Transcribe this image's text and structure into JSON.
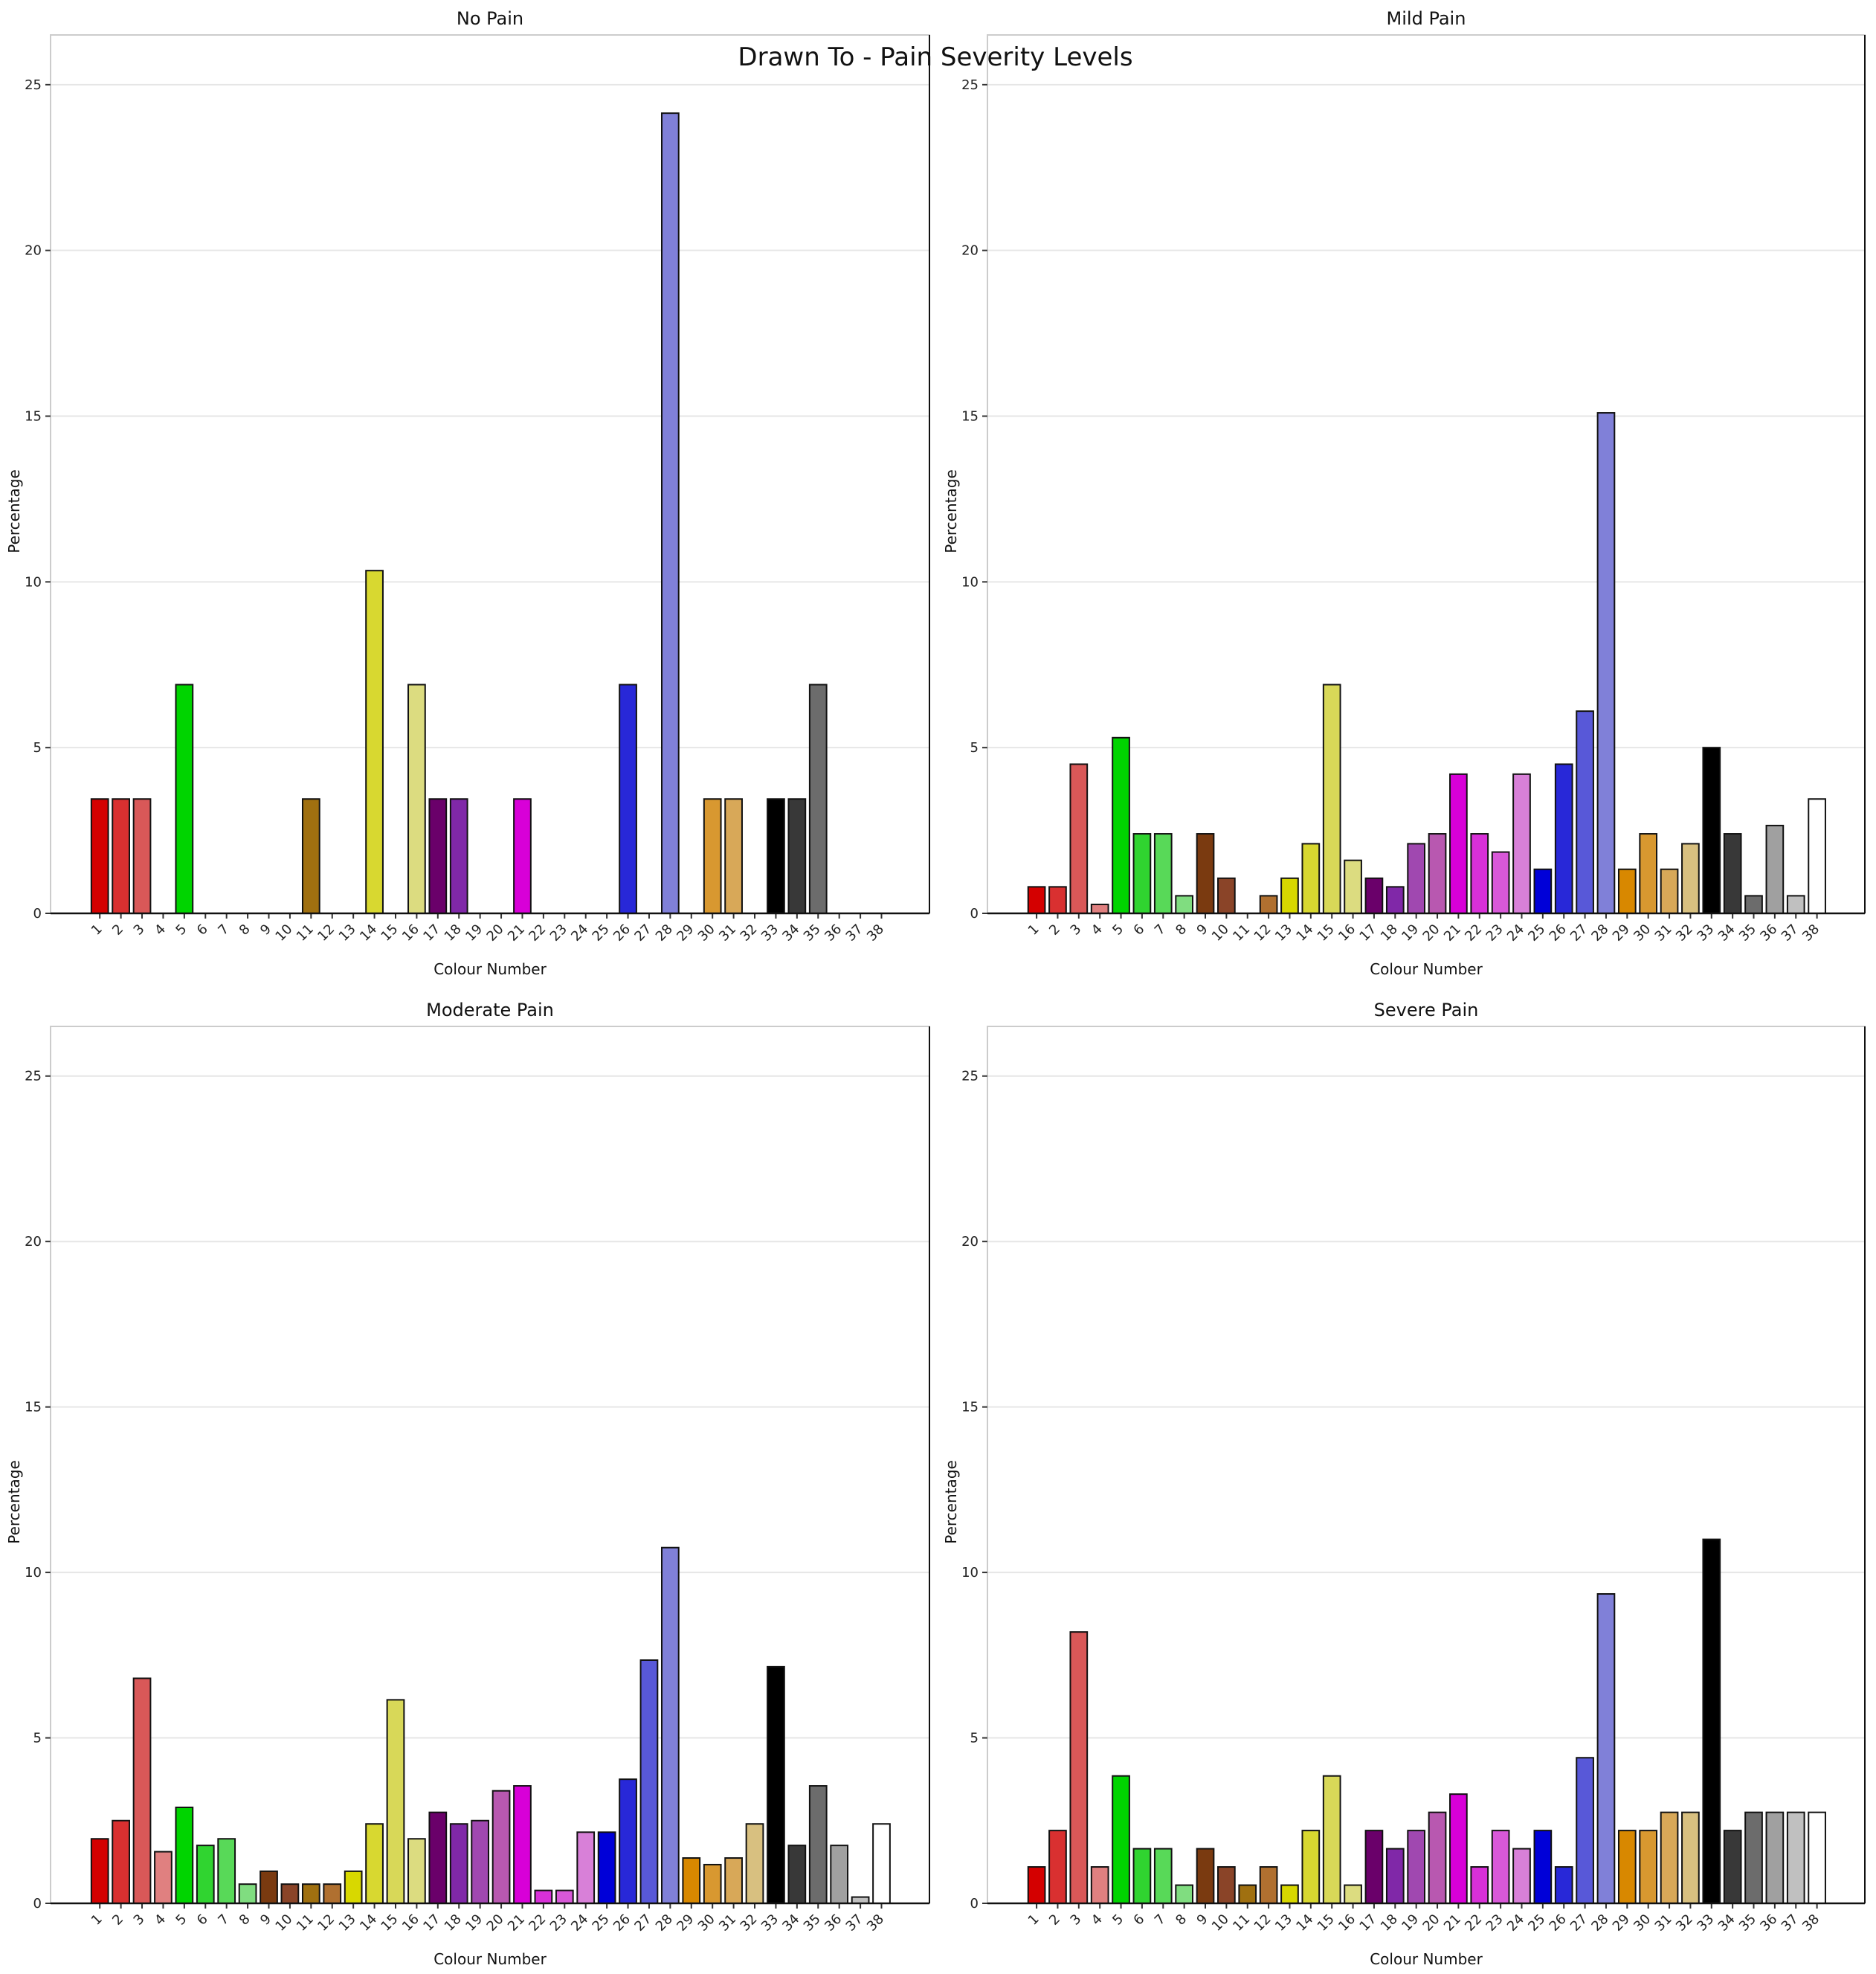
{
  "suptitle": "Drawn To - Pain Severity Levels",
  "colors": [
    "#d40000",
    "#d93030",
    "#d95858",
    "#e08080",
    "#00d400",
    "#30d430",
    "#58d958",
    "#80dd80",
    "#7a3a10",
    "#8a4428",
    "#a07010",
    "#b07030",
    "#d8d800",
    "#d8d830",
    "#d8d858",
    "#dcdc80",
    "#6a006a",
    "#8028a8",
    "#a048b0",
    "#b858b0",
    "#d800d8",
    "#d830d8",
    "#d858d8",
    "#d880d8",
    "#0000d8",
    "#2828d8",
    "#5858d8",
    "#8080d8",
    "#d88800",
    "#d89830",
    "#d8a858",
    "#d8c080",
    "#000000",
    "#383838",
    "#6c6c6c",
    "#a0a0a0",
    "#c0c0c0",
    "#ffffff"
  ],
  "chart_data": [
    {
      "type": "bar",
      "title": "No Pain",
      "xlabel": "Colour Number",
      "ylabel": "Percentage",
      "ylim": [
        0,
        26.5
      ],
      "yticks": [
        0,
        5,
        10,
        15,
        20,
        25
      ],
      "grid": true,
      "categories": [
        "1",
        "2",
        "3",
        "4",
        "5",
        "6",
        "7",
        "8",
        "9",
        "10",
        "11",
        "12",
        "13",
        "14",
        "15",
        "16",
        "17",
        "18",
        "19",
        "20",
        "21",
        "22",
        "23",
        "24",
        "25",
        "26",
        "27",
        "28",
        "29",
        "30",
        "31",
        "32",
        "33",
        "34",
        "35",
        "36",
        "37",
        "38"
      ],
      "values": [
        3.45,
        3.45,
        3.45,
        0,
        6.9,
        0,
        0,
        0,
        0,
        0,
        3.45,
        0,
        0,
        10.34,
        0,
        6.9,
        3.45,
        3.45,
        0,
        0,
        3.45,
        0,
        0,
        0,
        0,
        6.9,
        0,
        24.14,
        0,
        3.45,
        3.45,
        0,
        3.45,
        3.45,
        6.9,
        0,
        0,
        0
      ]
    },
    {
      "type": "bar",
      "title": "Mild Pain",
      "xlabel": "Colour Number",
      "ylabel": "Percentage",
      "ylim": [
        0,
        26.5
      ],
      "yticks": [
        0,
        5,
        10,
        15,
        20,
        25
      ],
      "grid": true,
      "categories": [
        "1",
        "2",
        "3",
        "4",
        "5",
        "6",
        "7",
        "8",
        "9",
        "10",
        "11",
        "12",
        "13",
        "14",
        "15",
        "16",
        "17",
        "18",
        "19",
        "20",
        "21",
        "22",
        "23",
        "24",
        "25",
        "26",
        "27",
        "28",
        "29",
        "30",
        "31",
        "32",
        "33",
        "34",
        "35",
        "36",
        "37",
        "38"
      ],
      "values": [
        0.8,
        0.8,
        4.5,
        0.27,
        5.3,
        2.4,
        2.4,
        0.53,
        2.4,
        1.06,
        0,
        0.53,
        1.06,
        2.1,
        6.9,
        1.6,
        1.06,
        0.8,
        2.1,
        2.4,
        4.2,
        2.4,
        1.85,
        4.2,
        1.33,
        4.5,
        6.1,
        15.1,
        1.33,
        2.4,
        1.33,
        2.1,
        5.0,
        2.4,
        0.53,
        2.65,
        0.53,
        3.45
      ]
    },
    {
      "type": "bar",
      "title": "Moderate Pain",
      "xlabel": "Colour Number",
      "ylabel": "Percentage",
      "ylim": [
        0,
        26.5
      ],
      "yticks": [
        0,
        5,
        10,
        15,
        20,
        25
      ],
      "grid": true,
      "categories": [
        "1",
        "2",
        "3",
        "4",
        "5",
        "6",
        "7",
        "8",
        "9",
        "10",
        "11",
        "12",
        "13",
        "14",
        "15",
        "16",
        "17",
        "18",
        "19",
        "20",
        "21",
        "22",
        "23",
        "24",
        "25",
        "26",
        "27",
        "28",
        "29",
        "30",
        "31",
        "32",
        "33",
        "34",
        "35",
        "36",
        "37",
        "38"
      ],
      "values": [
        1.95,
        2.5,
        6.8,
        1.56,
        2.9,
        1.75,
        1.95,
        0.58,
        0.97,
        0.58,
        0.58,
        0.58,
        0.97,
        2.4,
        6.15,
        1.95,
        2.75,
        2.4,
        2.5,
        3.4,
        3.55,
        0.39,
        0.39,
        2.15,
        2.15,
        3.75,
        7.35,
        10.75,
        1.37,
        1.17,
        1.37,
        2.4,
        7.15,
        1.75,
        3.55,
        1.75,
        0.19,
        2.4
      ]
    },
    {
      "type": "bar",
      "title": "Severe Pain",
      "xlabel": "Colour Number",
      "ylabel": "Percentage",
      "ylim": [
        0,
        26.5
      ],
      "yticks": [
        0,
        5,
        10,
        15,
        20,
        25
      ],
      "grid": true,
      "categories": [
        "1",
        "2",
        "3",
        "4",
        "5",
        "6",
        "7",
        "8",
        "9",
        "10",
        "11",
        "12",
        "13",
        "14",
        "15",
        "16",
        "17",
        "18",
        "19",
        "20",
        "21",
        "22",
        "23",
        "24",
        "25",
        "26",
        "27",
        "28",
        "29",
        "30",
        "31",
        "32",
        "33",
        "34",
        "35",
        "36",
        "37",
        "38"
      ],
      "values": [
        1.1,
        2.2,
        8.2,
        1.1,
        3.85,
        1.65,
        1.65,
        0.55,
        1.65,
        1.1,
        0.55,
        1.1,
        0.55,
        2.2,
        3.85,
        0.55,
        2.2,
        1.65,
        2.2,
        2.75,
        3.3,
        1.1,
        2.2,
        1.65,
        2.2,
        1.1,
        4.4,
        9.35,
        2.2,
        2.2,
        2.75,
        2.75,
        11.0,
        2.2,
        2.75,
        2.75,
        2.75,
        2.75
      ]
    }
  ]
}
